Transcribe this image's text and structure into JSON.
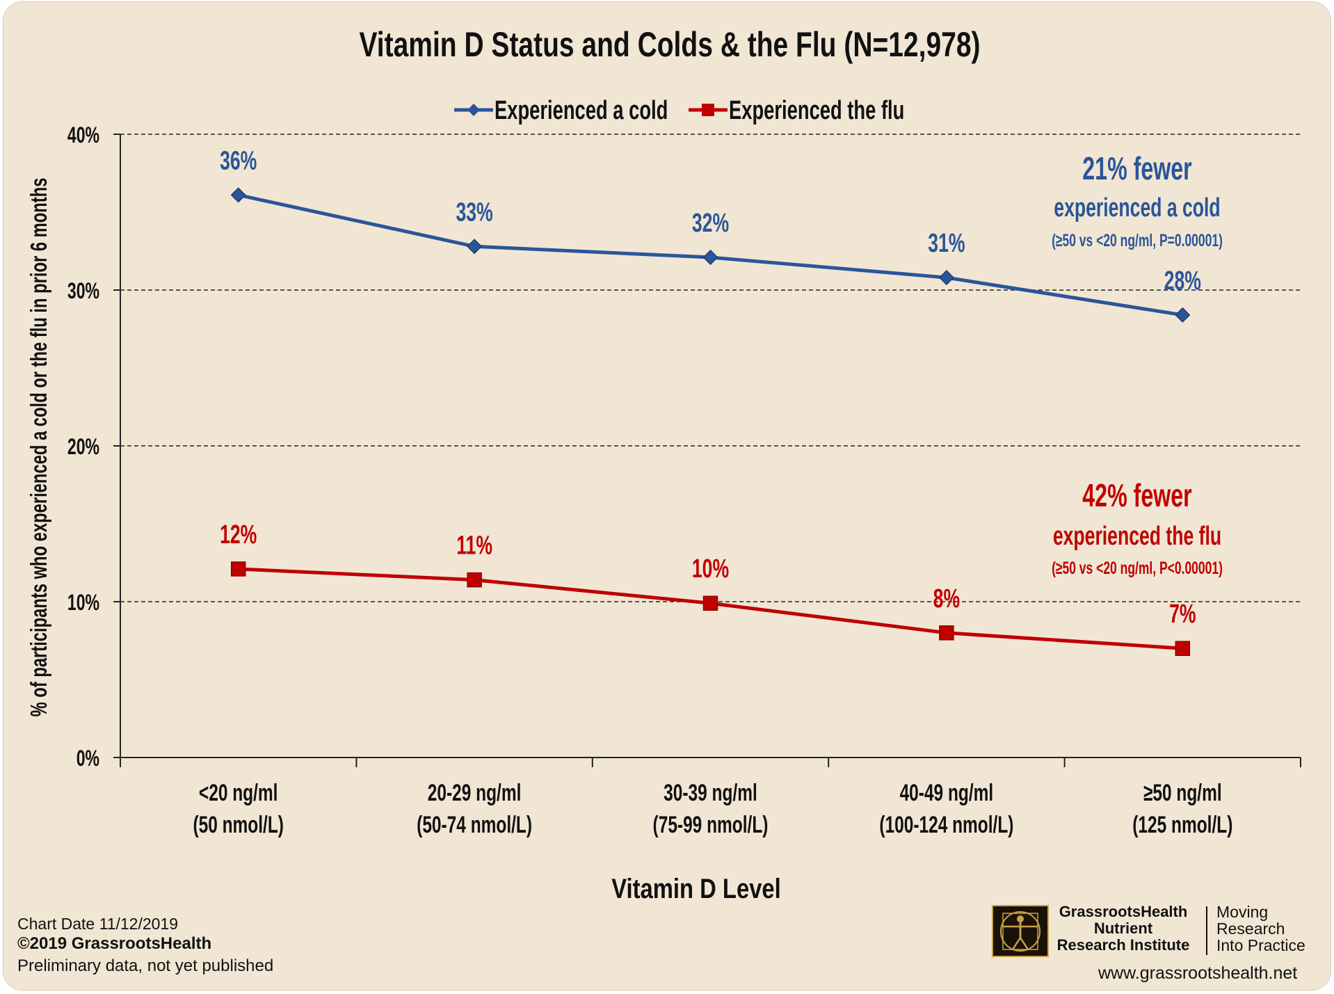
{
  "chart_data": {
    "type": "line",
    "title": "Vitamin D Status and Colds & the Flu (N=12,978)",
    "xlabel": "Vitamin D Level",
    "ylabel": "% of participants who experienced a cold or the flu in prior 6 months",
    "ylim": [
      0,
      40
    ],
    "yticks": [
      "0%",
      "10%",
      "20%",
      "30%",
      "40%"
    ],
    "ytick_values": [
      0,
      10,
      20,
      30,
      40
    ],
    "grid": true,
    "legend_position": "top",
    "categories": [
      [
        "<20 ng/ml",
        "(50 nmol/L)"
      ],
      [
        "20-29 ng/ml",
        "(50-74 nmol/L)"
      ],
      [
        "30-39 ng/ml",
        "(75-99 nmol/L)"
      ],
      [
        "40-49 ng/ml",
        "(100-124 nmol/L)"
      ],
      [
        "≥50 ng/ml",
        "(125 nmol/L)"
      ]
    ],
    "series": [
      {
        "name": "Experienced a cold",
        "color": "#2a5599",
        "marker": "diamond",
        "values": [
          36.1,
          32.8,
          32.1,
          30.8,
          28.4
        ],
        "labels": [
          "36%",
          "33%",
          "32%",
          "31%",
          "28%"
        ]
      },
      {
        "name": "Experienced the flu",
        "color": "#c00000",
        "marker": "square",
        "values": [
          12.1,
          11.4,
          9.9,
          8.0,
          7.0
        ],
        "labels": [
          "12%",
          "11%",
          "10%",
          "8%",
          "7%"
        ]
      }
    ],
    "annotations": [
      {
        "color": "#2a5599",
        "lines": [
          "21% fewer",
          "experienced a cold",
          "(≥50 vs <20 ng/ml, P=0.00001)"
        ]
      },
      {
        "color": "#c00000",
        "lines": [
          "42% fewer",
          "experienced the flu",
          "(≥50 vs <20 ng/ml, P<0.00001)"
        ]
      }
    ]
  },
  "footer": {
    "chart_date": "Chart Date  11/12/2019",
    "copyright": "©2019 GrassrootsHealth",
    "note": "Preliminary data, not yet published",
    "org_line1": "GrassrootsHealth",
    "org_line2": "Nutrient",
    "org_line3": "Research Institute",
    "tag_line1": "Moving",
    "tag_line2": "Research",
    "tag_line3": "Into Practice",
    "website": "www.grassrootshealth.net"
  }
}
